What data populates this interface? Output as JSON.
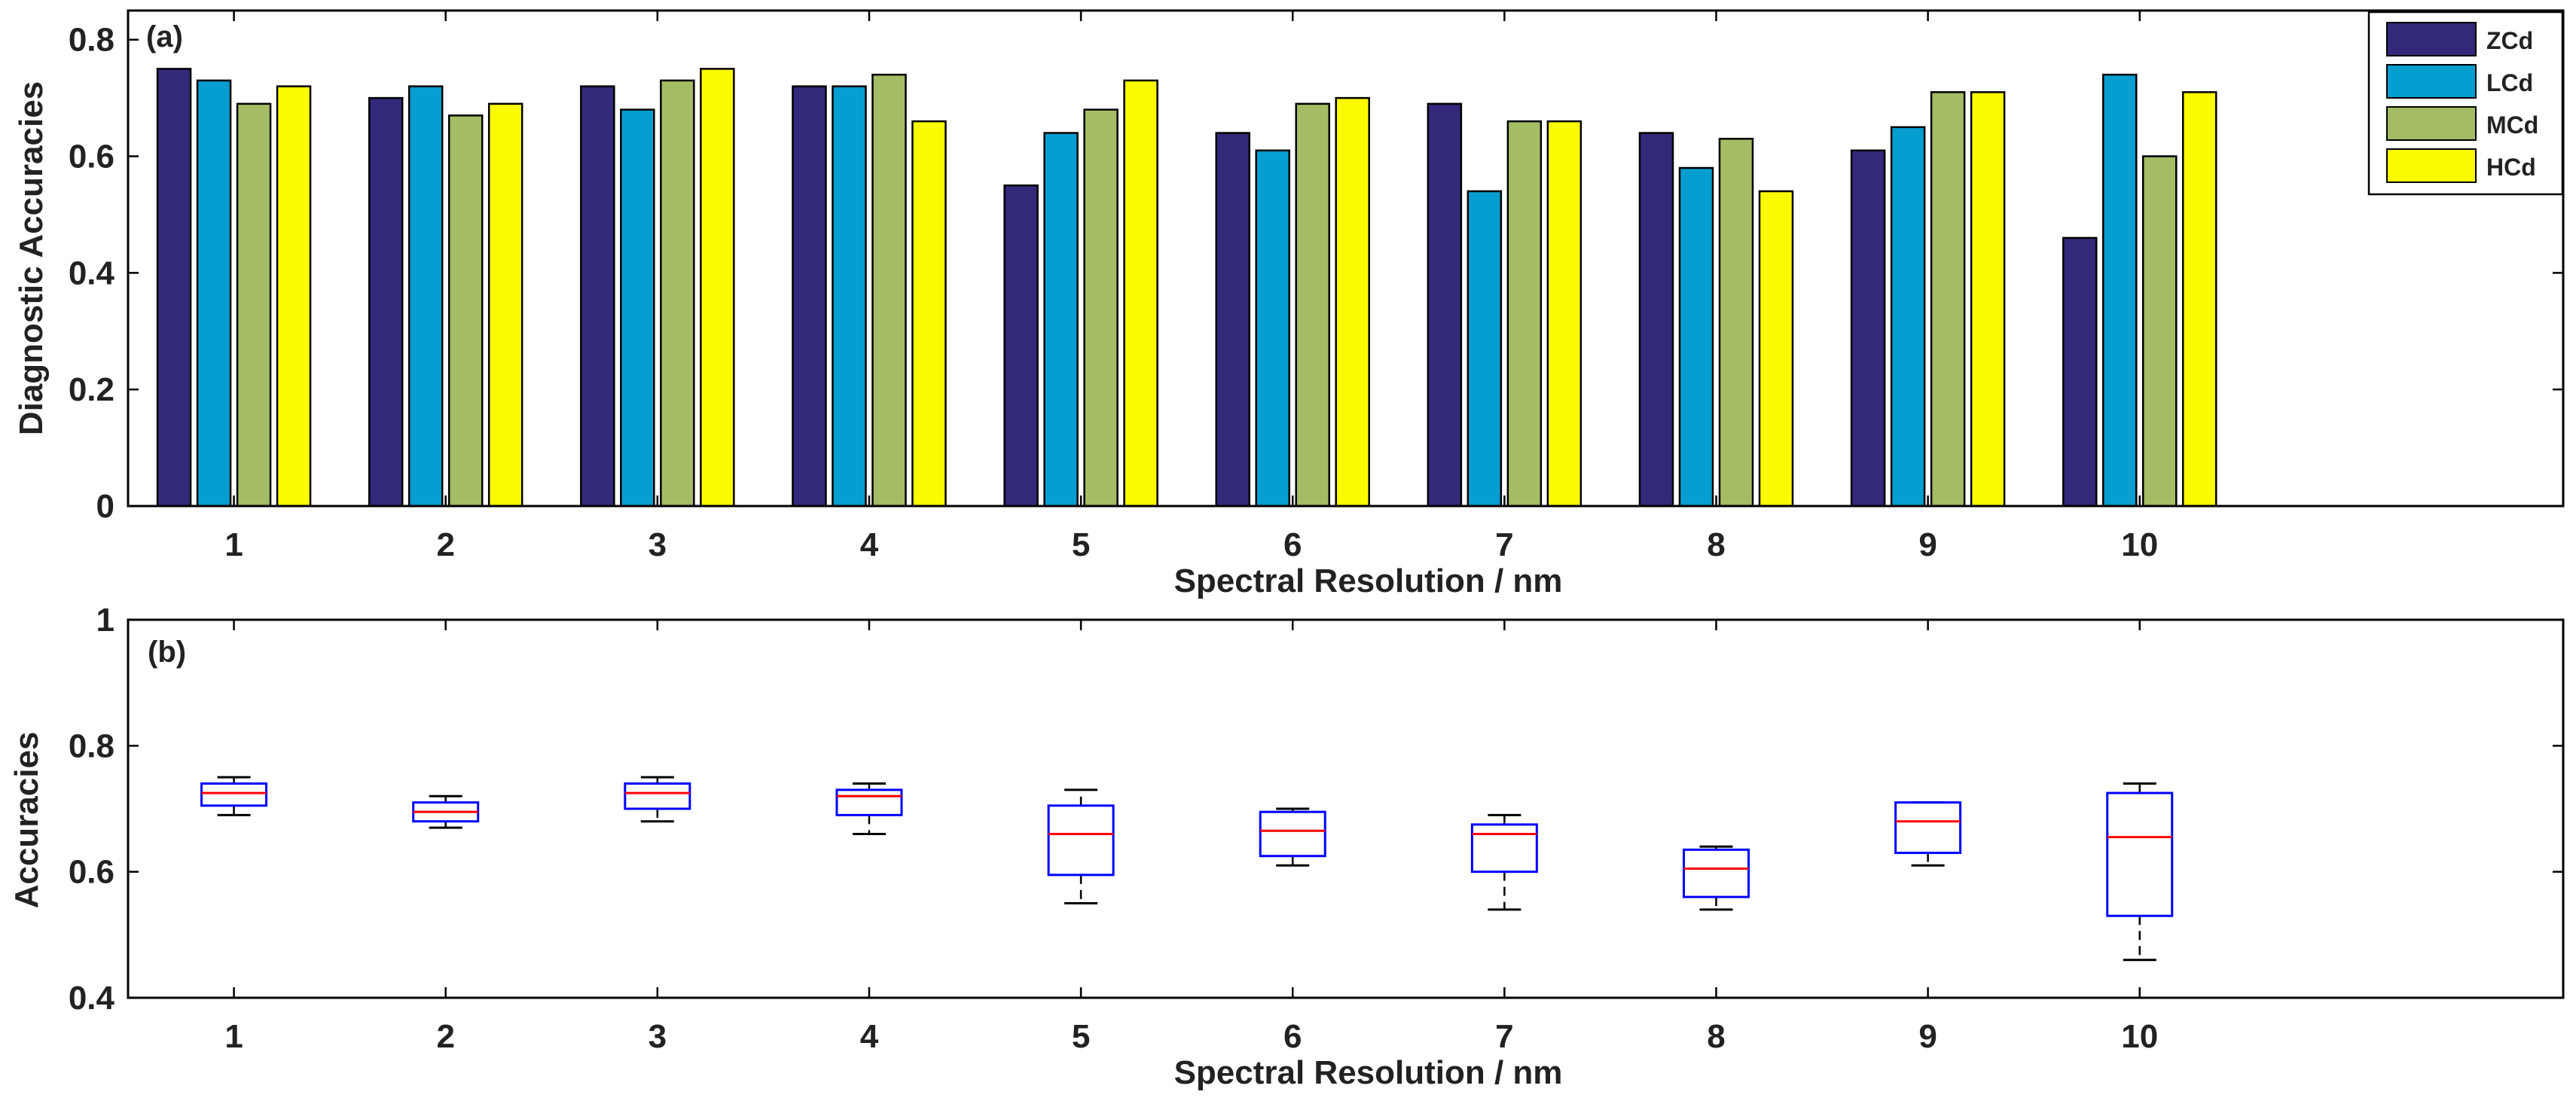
{
  "chart_data": [
    {
      "type": "bar",
      "panel_label": "(a)",
      "categories": [
        "1",
        "2",
        "3",
        "4",
        "5",
        "6",
        "7",
        "8",
        "9",
        "10"
      ],
      "series": [
        {
          "name": "ZCd",
          "color": "#33297a",
          "values": [
            0.75,
            0.7,
            0.72,
            0.72,
            0.55,
            0.64,
            0.69,
            0.64,
            0.61,
            0.46
          ]
        },
        {
          "name": "LCd",
          "color": "#069dd1",
          "values": [
            0.73,
            0.72,
            0.68,
            0.72,
            0.64,
            0.61,
            0.54,
            0.58,
            0.65,
            0.74
          ]
        },
        {
          "name": "MCd",
          "color": "#a4bd65",
          "values": [
            0.69,
            0.67,
            0.73,
            0.74,
            0.68,
            0.69,
            0.66,
            0.63,
            0.71,
            0.6
          ]
        },
        {
          "name": "HCd",
          "color": "#fafa00",
          "values": [
            0.72,
            0.69,
            0.75,
            0.66,
            0.73,
            0.7,
            0.66,
            0.54,
            0.71,
            0.71
          ]
        }
      ],
      "xlabel": "Spectral Resolution / nm",
      "ylabel": "Diagnostic Accuracies",
      "ylim": [
        0,
        0.85
      ],
      "xlim": [
        0.5,
        12.0
      ],
      "yticks": [
        "0",
        "0.2",
        "0.4",
        "0.6",
        "0.8"
      ],
      "ytick_values": [
        0,
        0.2,
        0.4,
        0.6,
        0.8
      ],
      "legend_position": "top-right",
      "grid": false
    },
    {
      "type": "box",
      "panel_label": "(b)",
      "categories": [
        "1",
        "2",
        "3",
        "4",
        "5",
        "6",
        "7",
        "8",
        "9",
        "10"
      ],
      "boxes": [
        {
          "min": 0.69,
          "q1": 0.705,
          "median": 0.725,
          "q3": 0.74,
          "max": 0.75
        },
        {
          "min": 0.67,
          "q1": 0.68,
          "median": 0.695,
          "q3": 0.71,
          "max": 0.72
        },
        {
          "min": 0.68,
          "q1": 0.7,
          "median": 0.725,
          "q3": 0.74,
          "max": 0.75
        },
        {
          "min": 0.66,
          "q1": 0.69,
          "median": 0.72,
          "q3": 0.73,
          "max": 0.74
        },
        {
          "min": 0.55,
          "q1": 0.595,
          "median": 0.66,
          "q3": 0.705,
          "max": 0.73
        },
        {
          "min": 0.61,
          "q1": 0.625,
          "median": 0.665,
          "q3": 0.695,
          "max": 0.7
        },
        {
          "min": 0.54,
          "q1": 0.6,
          "median": 0.66,
          "q3": 0.675,
          "max": 0.69
        },
        {
          "min": 0.54,
          "q1": 0.56,
          "median": 0.605,
          "q3": 0.635,
          "max": 0.64
        },
        {
          "min": 0.61,
          "q1": 0.63,
          "median": 0.68,
          "q3": 0.71,
          "max": 0.71
        },
        {
          "min": 0.46,
          "q1": 0.53,
          "median": 0.655,
          "q3": 0.725,
          "max": 0.74
        }
      ],
      "box_color": "#0000ff",
      "median_color": "#ff0000",
      "whisker_color": "#000000",
      "xlabel": "Spectral Resolution / nm",
      "ylabel": "Accuracies",
      "ylim": [
        0.4,
        1.0
      ],
      "xlim": [
        0.5,
        12.0
      ],
      "yticks": [
        "0.4",
        "0.6",
        "0.8",
        "1"
      ],
      "ytick_values": [
        0.4,
        0.6,
        0.8,
        1.0
      ],
      "grid": false
    }
  ]
}
